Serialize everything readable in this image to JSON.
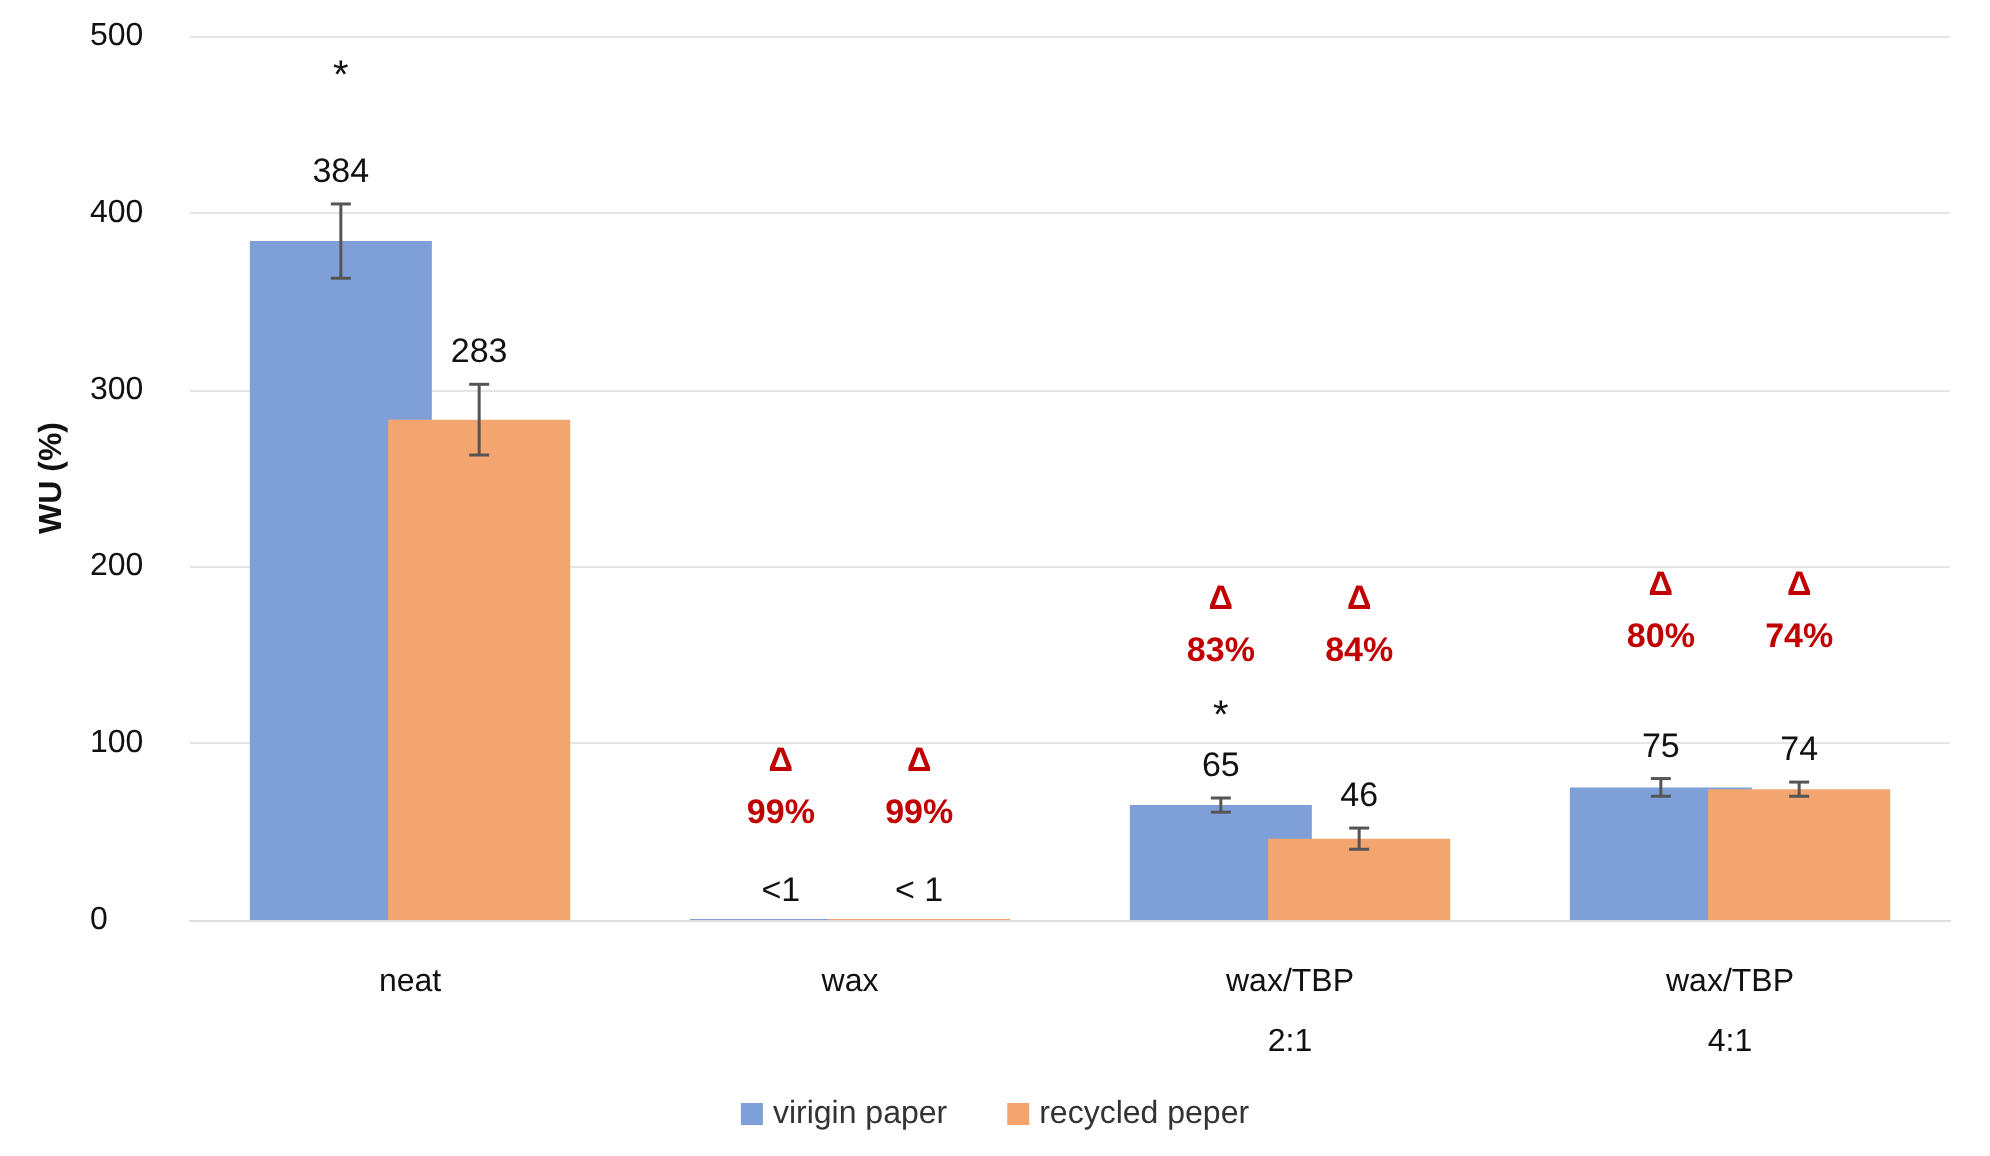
{
  "chart_data": {
    "type": "bar",
    "ylabel": "WU (%)",
    "categories": [
      "neat",
      "wax",
      "wax/TBP\n2:1",
      "wax/TBP\n4:1"
    ],
    "series": [
      {
        "name": "virigin paper",
        "color": "#7f9fd8",
        "values": [
          384,
          0.5,
          65,
          75
        ],
        "errors": [
          21,
          null,
          4,
          5
        ],
        "value_labels": [
          "384",
          "<1",
          "65",
          "75"
        ]
      },
      {
        "name": "recycled peper",
        "color": "#f2a56e",
        "values": [
          283,
          0.5,
          46,
          74
        ],
        "errors": [
          20,
          null,
          6,
          4
        ],
        "value_labels": [
          "283",
          "< 1",
          "46",
          "74"
        ]
      }
    ],
    "ylim": [
      0,
      500
    ],
    "yticks": [
      0,
      100,
      200,
      300,
      400,
      500
    ],
    "grid": "y",
    "legend": "bottom",
    "annotations": [
      "*",
      "Δ\n99%",
      "Δ\n99%",
      "*",
      "Δ\n83%",
      "Δ\n84%",
      "Δ\n80%",
      "Δ\n74%"
    ]
  }
}
